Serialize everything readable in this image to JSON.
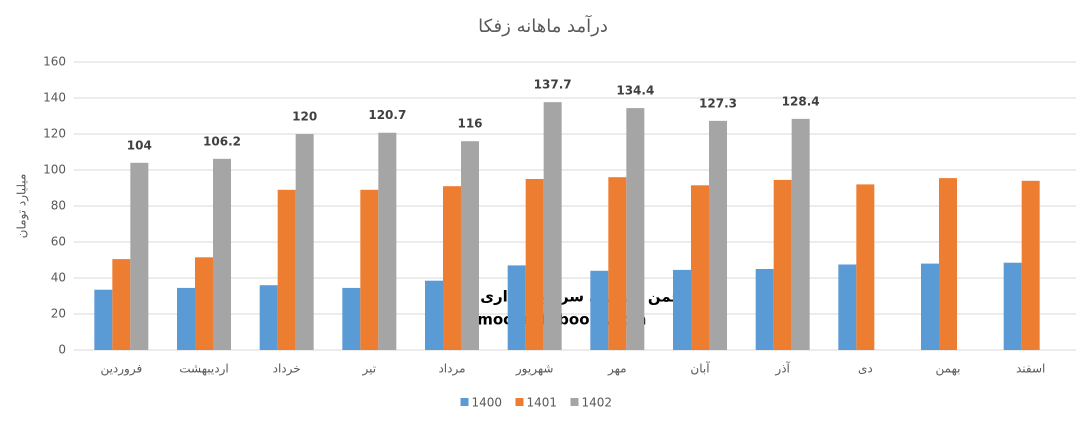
{
  "chart_data": {
    "type": "bar",
    "title": "درآمد ماهانه زفکا",
    "y_label": "میلیارد تومان",
    "categories": [
      "فروردین",
      "اردیبهشت",
      "خرداد",
      "تیر",
      "مرداد",
      "شهریور",
      "مهر",
      "آبان",
      "آذر",
      "دی",
      "بهمن",
      "اسفند"
    ],
    "series": [
      {
        "name": "1400",
        "color": "#5b9bd5",
        "show_labels": false,
        "values": [
          33.5,
          34.5,
          36,
          34.5,
          38.5,
          47,
          44,
          44.5,
          45,
          47.5,
          48,
          48.5
        ]
      },
      {
        "name": "1401",
        "color": "#ed7d31",
        "show_labels": false,
        "values": [
          50.5,
          51.5,
          89,
          89,
          91,
          95,
          96,
          91.5,
          94.5,
          92,
          95.5,
          94
        ]
      },
      {
        "name": "1402",
        "color": "#a5a5a5",
        "show_labels": true,
        "values": [
          104,
          106.2,
          120,
          120.7,
          116,
          137.7,
          134.4,
          127.3,
          128.4,
          null,
          null,
          null
        ]
      }
    ],
    "ylim": [
      0,
      160
    ],
    "yticks": [
      0,
      20,
      40,
      60,
      80,
      100,
      120,
      140,
      160
    ],
    "grid": true,
    "legend": "bottom",
    "annotations": [
      "انجمن خبرگان سرمایه گذاری ایران",
      "Amoozesh-boors.com"
    ]
  }
}
